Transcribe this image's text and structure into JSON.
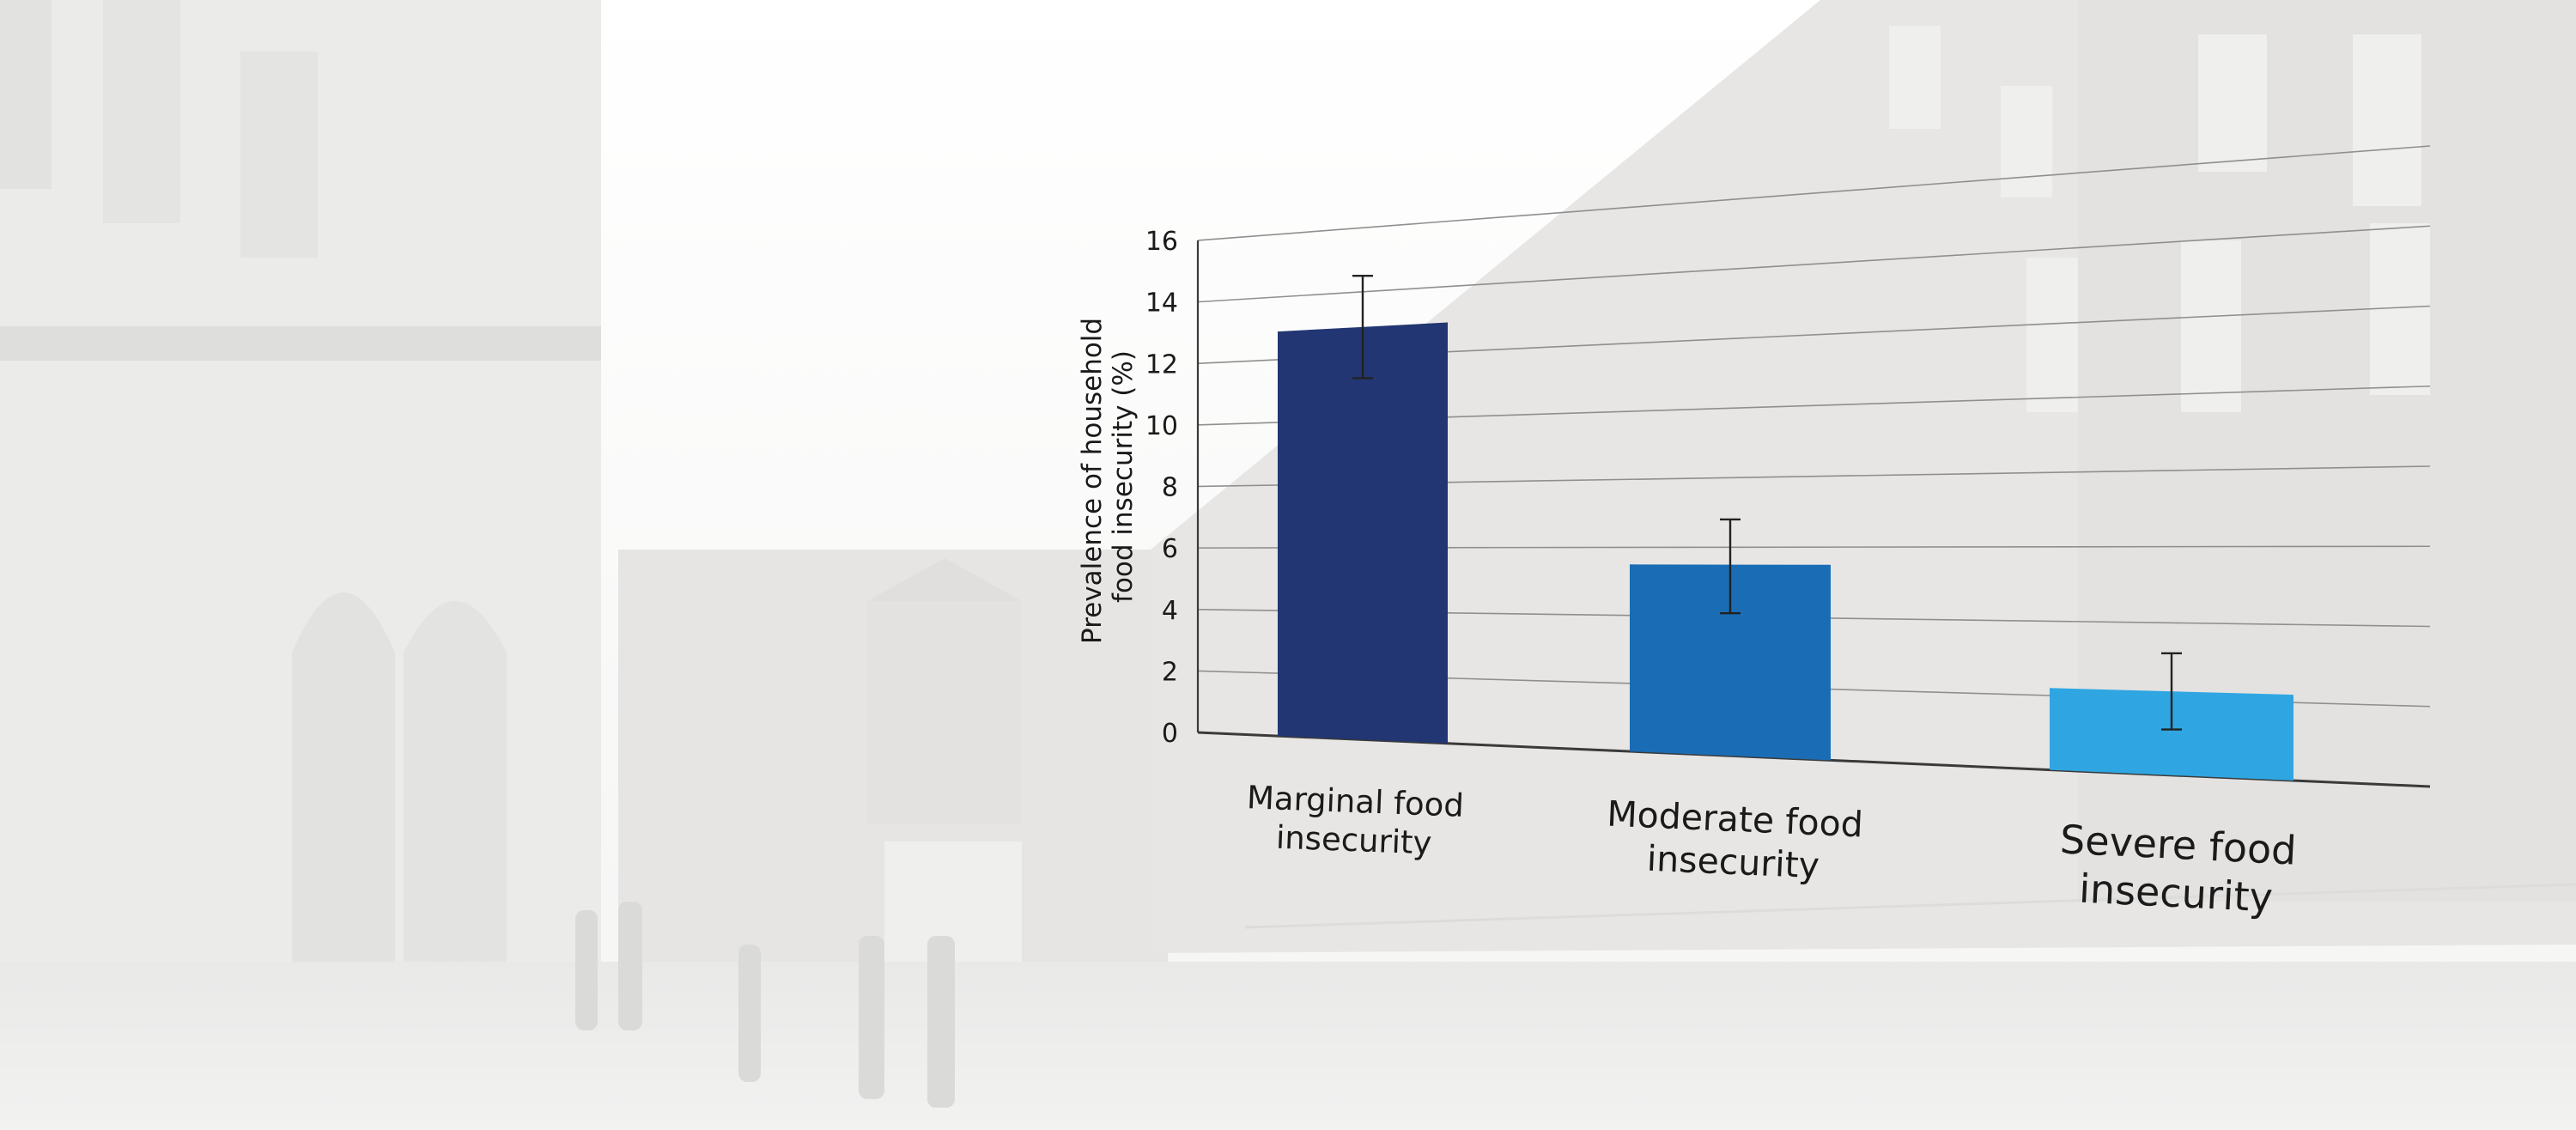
{
  "chart_data": {
    "type": "bar",
    "ylabel": "Prevalence of household food insecurity (%)",
    "ylabel_lines": [
      "Prevalence of household",
      "food insecurity (%)"
    ],
    "xlabel": "",
    "ylim": [
      0,
      16
    ],
    "yticks": [
      "0",
      "2",
      "4",
      "6",
      "8",
      "10",
      "12",
      "14",
      "16"
    ],
    "categories": [
      "Marginal food insecurity",
      "Moderate food insecurity",
      "Severe food insecurity"
    ],
    "category_lines": [
      [
        "Marginal food",
        "insecurity"
      ],
      [
        "Moderate food",
        "insecurity"
      ],
      [
        "Severe food",
        "insecurity"
      ]
    ],
    "values": [
      12.9,
      5.5,
      2.2
    ],
    "error_low": [
      11.3,
      4.1,
      1.2
    ],
    "error_high": [
      14.5,
      6.8,
      3.2
    ],
    "colors": [
      "#213672",
      "#1a6db5",
      "#2fa6e2"
    ],
    "grid": true,
    "legend": "none"
  }
}
